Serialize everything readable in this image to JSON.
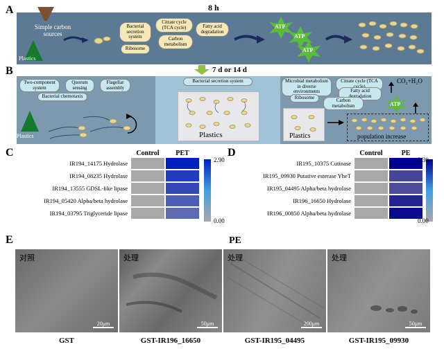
{
  "panels": {
    "A": "A",
    "B": "B",
    "C": "C",
    "D": "D",
    "E": "E"
  },
  "panel_fontsize": 16,
  "timing": {
    "top": "8 h",
    "mid": "7 d or 14 d"
  },
  "A": {
    "bg": "#5d7a95",
    "inputs": {
      "carbon": "Simple carbon sources",
      "plastics": "Plastics"
    },
    "boxes": [
      "Bacterial secretion system",
      "Ribosome",
      "Citrate cycle (TCA cycle)",
      "Carbon metabolism",
      "Fatty acid degradation"
    ],
    "atp": "ATP",
    "atp_color": "#5dbb3a"
  },
  "B": {
    "bg": "#9fc2d6",
    "stage1_bg": "#7d99ad",
    "stage1_boxes": [
      "Two-component system",
      "Quorum sensing",
      "Flagellar assembly",
      "Bacterial chemotaxis"
    ],
    "stage1_plastics": "Plastics",
    "stage2_box": "Bacterial secretion system",
    "stage2_plastics": "Plastics",
    "stage3_boxes": [
      "Microbial metabolism in diverse environments",
      "Ribosome",
      "Citrate cycle (TCA cycle)",
      "Fatty acid degradation",
      "Carbon metabolism"
    ],
    "stage3_plastics": "Plastics",
    "atp": "ATP",
    "co2": "CO₂+H₂O",
    "pop": "population increase"
  },
  "C": {
    "col_headers": [
      "Control",
      "PET"
    ],
    "rows": [
      {
        "label": "IR194_14175 Hydrolase",
        "vals": [
          0,
          2.9
        ]
      },
      {
        "label": "IR194_08235 Hydrolase",
        "vals": [
          0,
          2.3
        ]
      },
      {
        "label": "IR194_13555 GDSL-like lipase",
        "vals": [
          0,
          2.0
        ]
      },
      {
        "label": "IR194_05420  Alpha/beta hydrolase",
        "vals": [
          0,
          1.6
        ]
      },
      {
        "label": "IR194_03795 Triglyceride lipase",
        "vals": [
          0,
          1.3
        ]
      }
    ],
    "scale": {
      "min": 0.0,
      "max": 2.9,
      "min_color": "#a8a8a8",
      "max_color": "#0020c0"
    }
  },
  "D": {
    "col_headers": [
      "Control",
      "PE"
    ],
    "rows": [
      {
        "label": "IR195_10375 Cutinase",
        "vals": [
          0,
          3.3
        ]
      },
      {
        "label": "IR195_09930 Putative esterase YheT",
        "vals": [
          0,
          1.9
        ]
      },
      {
        "label": "IR195_04495 Alpha/beta hydrolase",
        "vals": [
          0,
          1.8
        ]
      },
      {
        "label": "IR196_16650 Hydrolase",
        "vals": [
          0,
          2.6
        ]
      },
      {
        "label": "IR196_00850 Alpha/beta hydrolase",
        "vals": [
          0,
          3.1
        ]
      }
    ],
    "scale": {
      "min": 0.0,
      "max": 3.3,
      "min_color": "#a8a8a8",
      "max_color": "#000090"
    }
  },
  "E": {
    "header": "PE",
    "images": [
      {
        "label": "对照",
        "scale": "20μm",
        "sample": "GST"
      },
      {
        "label": "处理",
        "scale": "50μm",
        "sample": "GST-IR196_16650"
      },
      {
        "label": "处理",
        "scale": "200μm",
        "sample": "GST-IR195_04495"
      },
      {
        "label": "处理",
        "scale": "50μm",
        "sample": "GST-IR195_09930"
      }
    ]
  },
  "colors": {
    "carbon_funnel": "#7a5230",
    "plastics_tri": "#167a2e",
    "arrow": "#1a2a5a",
    "bacteria": "#e8d898",
    "flagella": "#2a4a70"
  }
}
